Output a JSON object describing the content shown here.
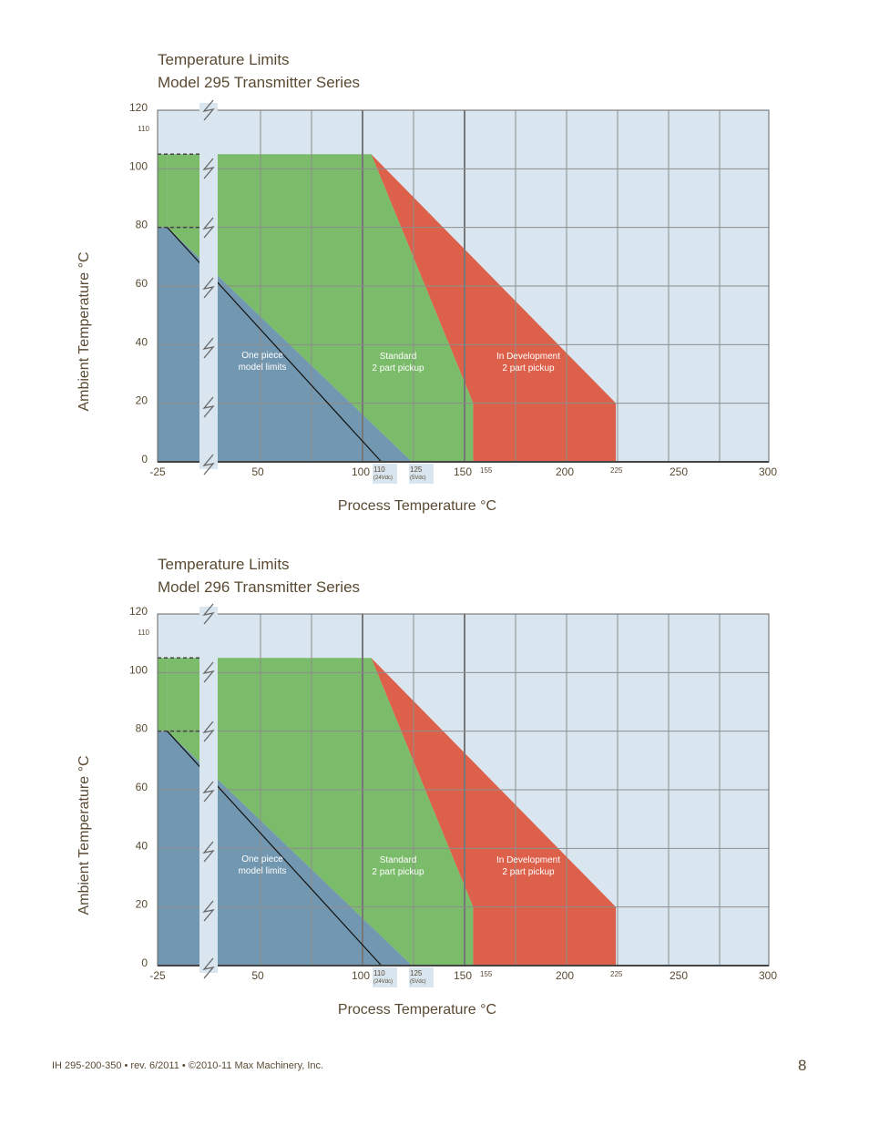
{
  "charts": [
    {
      "title_line1": "Temperature Limits",
      "title_line2": "Model 295 Transmitter Series"
    },
    {
      "title_line1": "Temperature Limits",
      "title_line2": "Model 296 Transmitter Series"
    }
  ],
  "chart_data": [
    {
      "type": "area",
      "title": "Temperature Limits Model 295 Transmitter Series",
      "xlabel": "Process Temperature °C",
      "ylabel": "Ambient Temperature °C",
      "xlim": [
        -25,
        300
      ],
      "ylim": [
        0,
        120
      ],
      "x_ticks": [
        "-25",
        "50",
        "100",
        "150",
        "200",
        "250",
        "300"
      ],
      "x_ticks_small": [
        "110",
        "(24Vdc)",
        "125",
        "(5Vdc)",
        "155",
        "225"
      ],
      "y_ticks": [
        "0",
        "20",
        "40",
        "60",
        "80",
        "100",
        "120"
      ],
      "y_tick_small": "110",
      "axis_break": true,
      "grid": true,
      "series": [
        {
          "name": "In Development 2 part pickup",
          "color": "#dd604a",
          "points": [
            [
              105,
              105
            ],
            [
              225,
              20
            ],
            [
              225,
              0
            ],
            [
              155,
              0
            ],
            [
              155,
              20
            ]
          ]
        },
        {
          "name": "Standard 2 part pickup",
          "color": "#7bbc6b",
          "points": [
            [
              5,
              105
            ],
            [
              105,
              105
            ],
            [
              155,
              20
            ],
            [
              155,
              0
            ],
            [
              125,
              0
            ],
            [
              5,
              80
            ]
          ]
        },
        {
          "name": "One piece model limits",
          "color": "#7297b0",
          "points": [
            [
              -25,
              80
            ],
            [
              5,
              80
            ],
            [
              125,
              0
            ],
            [
              -25,
              0
            ]
          ]
        },
        {
          "name": "",
          "color": "#7bbc6b",
          "points": [
            [
              -25,
              105
            ],
            [
              5,
              105
            ],
            [
              5,
              80
            ],
            [
              -25,
              80
            ]
          ]
        }
      ],
      "diagonal_line": [
        [
          5,
          80
        ],
        [
          110,
          0
        ]
      ]
    },
    {
      "type": "area",
      "title": "Temperature Limits Model 296 Transmitter Series",
      "xlabel": "Process Temperature °C",
      "ylabel": "Ambient Temperature °C",
      "xlim": [
        -25,
        300
      ],
      "ylim": [
        0,
        120
      ],
      "x_ticks": [
        "-25",
        "50",
        "100",
        "150",
        "200",
        "250",
        "300"
      ],
      "x_ticks_small": [
        "110",
        "(24Vdc)",
        "125",
        "(5Vdc)",
        "155",
        "225"
      ],
      "y_ticks": [
        "0",
        "20",
        "40",
        "60",
        "80",
        "100",
        "120"
      ],
      "y_tick_small": "110",
      "axis_break": true,
      "grid": true,
      "series": [
        {
          "name": "In Development 2 part pickup",
          "color": "#dd604a",
          "points": [
            [
              105,
              105
            ],
            [
              225,
              20
            ],
            [
              225,
              0
            ],
            [
              155,
              0
            ],
            [
              155,
              20
            ]
          ]
        },
        {
          "name": "Standard 2 part pickup",
          "color": "#7bbc6b",
          "points": [
            [
              5,
              105
            ],
            [
              105,
              105
            ],
            [
              155,
              20
            ],
            [
              155,
              0
            ],
            [
              125,
              0
            ],
            [
              5,
              80
            ]
          ]
        },
        {
          "name": "One piece model limits",
          "color": "#7297b0",
          "points": [
            [
              -25,
              80
            ],
            [
              5,
              80
            ],
            [
              125,
              0
            ],
            [
              -25,
              0
            ]
          ]
        },
        {
          "name": "",
          "color": "#7bbc6b",
          "points": [
            [
              -25,
              105
            ],
            [
              5,
              105
            ],
            [
              5,
              80
            ],
            [
              -25,
              80
            ]
          ]
        }
      ],
      "diagonal_line": [
        [
          5,
          80
        ],
        [
          110,
          0
        ]
      ]
    }
  ],
  "region_labels": {
    "one_piece": [
      "One piece",
      "model limits"
    ],
    "standard": [
      "Standard",
      "2 part pickup"
    ],
    "in_development": [
      "In Development",
      "2 part pickup"
    ]
  },
  "colors": {
    "plot_background": "#d9e6ef",
    "grid": "#8d8d8d",
    "text": "#5a4a33"
  },
  "footer": {
    "left_text": "IH 295-200-350 • rev. 6/2011 • ©2010-11 Max Machinery, Inc.",
    "page_number": "8"
  }
}
